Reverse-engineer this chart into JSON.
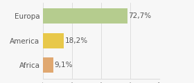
{
  "categories": [
    "Europa",
    "America",
    "Africa"
  ],
  "values": [
    72.7,
    18.2,
    9.1
  ],
  "labels": [
    "72,7%",
    "18,2%",
    "9,1%"
  ],
  "bar_colors": [
    "#b5cc8e",
    "#e8c84a",
    "#e0a870"
  ],
  "background_color": "#f7f7f7",
  "xlim": [
    0,
    100
  ],
  "bar_height": 0.62,
  "label_fontsize": 7.5,
  "tick_fontsize": 7.5,
  "grid_color": "#dddddd"
}
